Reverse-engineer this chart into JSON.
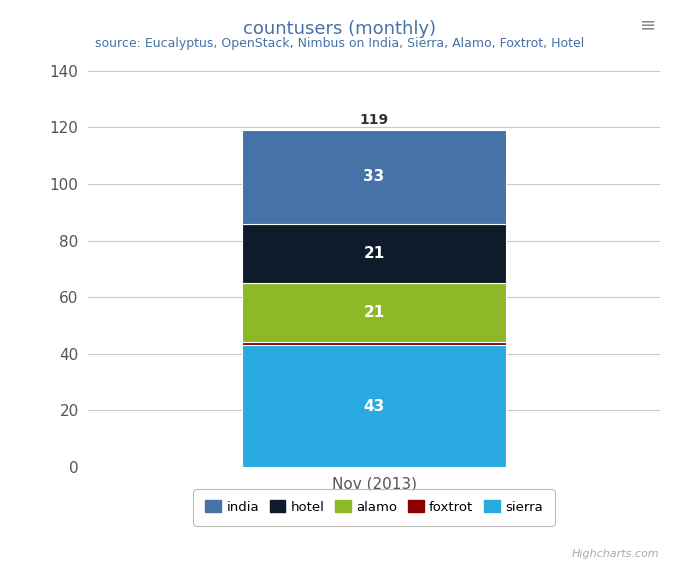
{
  "title": "countusers (monthly)",
  "subtitle": "source: Eucalyptus, OpenStack, Nimbus on India, Sierra, Alamo, Foxtrot, Hotel",
  "title_color": "#4572A7",
  "subtitle_color": "#4572A7",
  "category": "Nov (2013)",
  "segments": [
    {
      "label": "sierra",
      "value": 43,
      "color": "#29ABE2"
    },
    {
      "label": "foxtrot",
      "value": 1,
      "color": "#8B0000"
    },
    {
      "label": "alamo",
      "value": 21,
      "color": "#8DB828"
    },
    {
      "label": "hotel",
      "value": 21,
      "color": "#0D1B2A"
    },
    {
      "label": "india",
      "value": 33,
      "color": "#4572A7"
    }
  ],
  "legend_order": [
    "india",
    "hotel",
    "alamo",
    "foxtrot",
    "sierra"
  ],
  "total_label": 119,
  "ylim": [
    0,
    140
  ],
  "yticks": [
    0,
    20,
    40,
    60,
    80,
    100,
    120,
    140
  ],
  "bg_color": "#FFFFFF",
  "plot_bg_color": "#FFFFFF",
  "grid_color": "#C8C8C8",
  "bar_width": 0.6,
  "highcharts_text": "Highcharts.com",
  "legend_border_color": "#AAAAAA",
  "menu_icon_color": "#888888",
  "title_fontsize": 13,
  "subtitle_fontsize": 9,
  "tick_fontsize": 11,
  "label_fontsize": 11
}
